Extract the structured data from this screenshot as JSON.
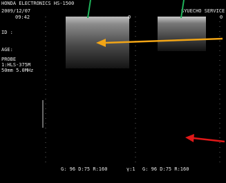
{
  "header": {
    "maker": "HONDA ELECTRONICS HS-1500",
    "date": "2009/12/07",
    "time": "09:42",
    "id_label": "ID :",
    "age_label": "AGE:",
    "probe_label": "PROBE",
    "probe_model": "1:HLS-375M",
    "probe_spec": "50mm 5.0MHz",
    "service": "SYUECHO SERVICE"
  },
  "left_pane": {
    "depth_mark": "0"
  },
  "right_pane": {
    "depth_mark": "0"
  },
  "footer": {
    "left_settings": "G: 96 D:75 R:160",
    "gamma": "γ:1",
    "right_settings": "G: 96 D:75 R:160"
  }
}
